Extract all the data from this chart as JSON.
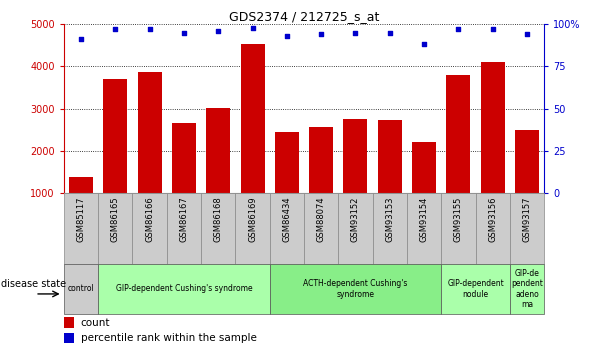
{
  "title": "GDS2374 / 212725_s_at",
  "samples": [
    "GSM85117",
    "GSM86165",
    "GSM86166",
    "GSM86167",
    "GSM86168",
    "GSM86169",
    "GSM86434",
    "GSM88074",
    "GSM93152",
    "GSM93153",
    "GSM93154",
    "GSM93155",
    "GSM93156",
    "GSM93157"
  ],
  "counts": [
    1380,
    3700,
    3870,
    2650,
    3020,
    4530,
    2450,
    2570,
    2760,
    2740,
    2200,
    3800,
    4100,
    2500
  ],
  "percentiles": [
    91,
    97,
    97,
    95,
    96,
    98,
    93,
    94,
    95,
    95,
    88,
    97,
    97,
    94
  ],
  "ylim_left": [
    1000,
    5000
  ],
  "ylim_right": [
    0,
    100
  ],
  "bar_color": "#cc0000",
  "dot_color": "#0000cc",
  "disease_groups": [
    {
      "label": "control",
      "start": 0,
      "end": 1,
      "color": "#cccccc"
    },
    {
      "label": "GIP-dependent Cushing's syndrome",
      "start": 1,
      "end": 6,
      "color": "#aaffaa"
    },
    {
      "label": "ACTH-dependent Cushing's\nsyndrome",
      "start": 6,
      "end": 11,
      "color": "#88ee88"
    },
    {
      "label": "GIP-dependent\nnodule",
      "start": 11,
      "end": 13,
      "color": "#aaffaa"
    },
    {
      "label": "GIP-de\npendent\nadeno\nma",
      "start": 13,
      "end": 14,
      "color": "#aaffaa"
    }
  ],
  "legend_items": [
    {
      "label": "count",
      "color": "#cc0000"
    },
    {
      "label": "percentile rank within the sample",
      "color": "#0000cc"
    }
  ],
  "ylabel_left_color": "#cc0000",
  "ylabel_right_color": "#0000cc",
  "yticks_left": [
    1000,
    2000,
    3000,
    4000,
    5000
  ],
  "yticks_right": [
    0,
    25,
    50,
    75,
    100
  ],
  "ytick_right_labels": [
    "0",
    "25",
    "50",
    "75",
    "100%"
  ]
}
